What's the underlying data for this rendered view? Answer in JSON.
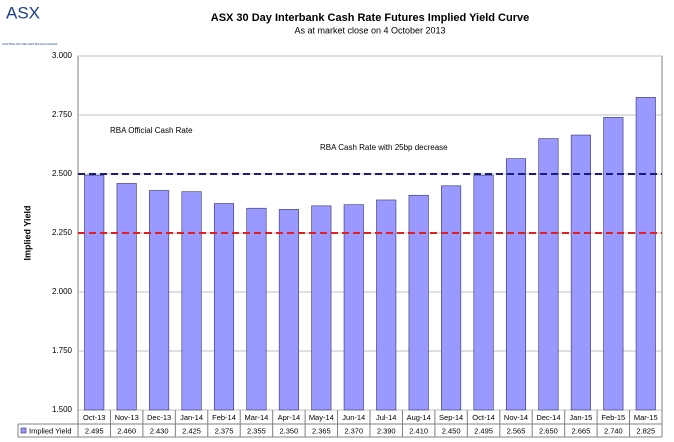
{
  "chart_data": {
    "type": "bar",
    "logo": "ASX",
    "logo_subtitle": "AUSTRALIAN SECURITIES EXCHANGE",
    "title": "ASX 30 Day Interbank Cash Rate Futures Implied Yield Curve",
    "subtitle": "As at market close on 4 October 2013",
    "y_label": "Implied Yield",
    "categories": [
      "Oct-13",
      "Nov-13",
      "Dec-13",
      "Jan-14",
      "Feb-14",
      "Mar-14",
      "Apr-14",
      "May-14",
      "Jun-14",
      "Jul-14",
      "Aug-14",
      "Sep-14",
      "Oct-14",
      "Nov-14",
      "Dec-14",
      "Jan-15",
      "Feb-15",
      "Mar-15"
    ],
    "series": [
      {
        "name": "Implied Yield",
        "color": "#9999ff",
        "values": [
          2.495,
          2.46,
          2.43,
          2.425,
          2.375,
          2.355,
          2.35,
          2.365,
          2.37,
          2.39,
          2.41,
          2.45,
          2.495,
          2.565,
          2.65,
          2.665,
          2.74,
          2.825
        ],
        "value_labels": [
          "2.495",
          "2.460",
          "2.430",
          "2.425",
          "2.375",
          "2.355",
          "2.350",
          "2.365",
          "2.370",
          "2.390",
          "2.410",
          "2.450",
          "2.495",
          "2.565",
          "2.650",
          "2.665",
          "2.740",
          "2.825"
        ]
      }
    ],
    "ylim": [
      1.5,
      3.0
    ],
    "yticks": [
      {
        "value": 1.5,
        "label": "1.500"
      },
      {
        "value": 1.75,
        "label": "1.750"
      },
      {
        "value": 2.0,
        "label": "2.000"
      },
      {
        "value": 2.25,
        "label": "2.250"
      },
      {
        "value": 2.5,
        "label": "2.500"
      },
      {
        "value": 2.75,
        "label": "2.750"
      },
      {
        "value": 3.0,
        "label": "3.000"
      }
    ],
    "grid": true,
    "reference_lines": [
      {
        "label": "RBA Official Cash Rate",
        "value": 2.5,
        "color": "#1a1a80"
      },
      {
        "label": "RBA Cash Rate with 25bp decrease",
        "value": 2.25,
        "color": "#e02020"
      }
    ]
  }
}
